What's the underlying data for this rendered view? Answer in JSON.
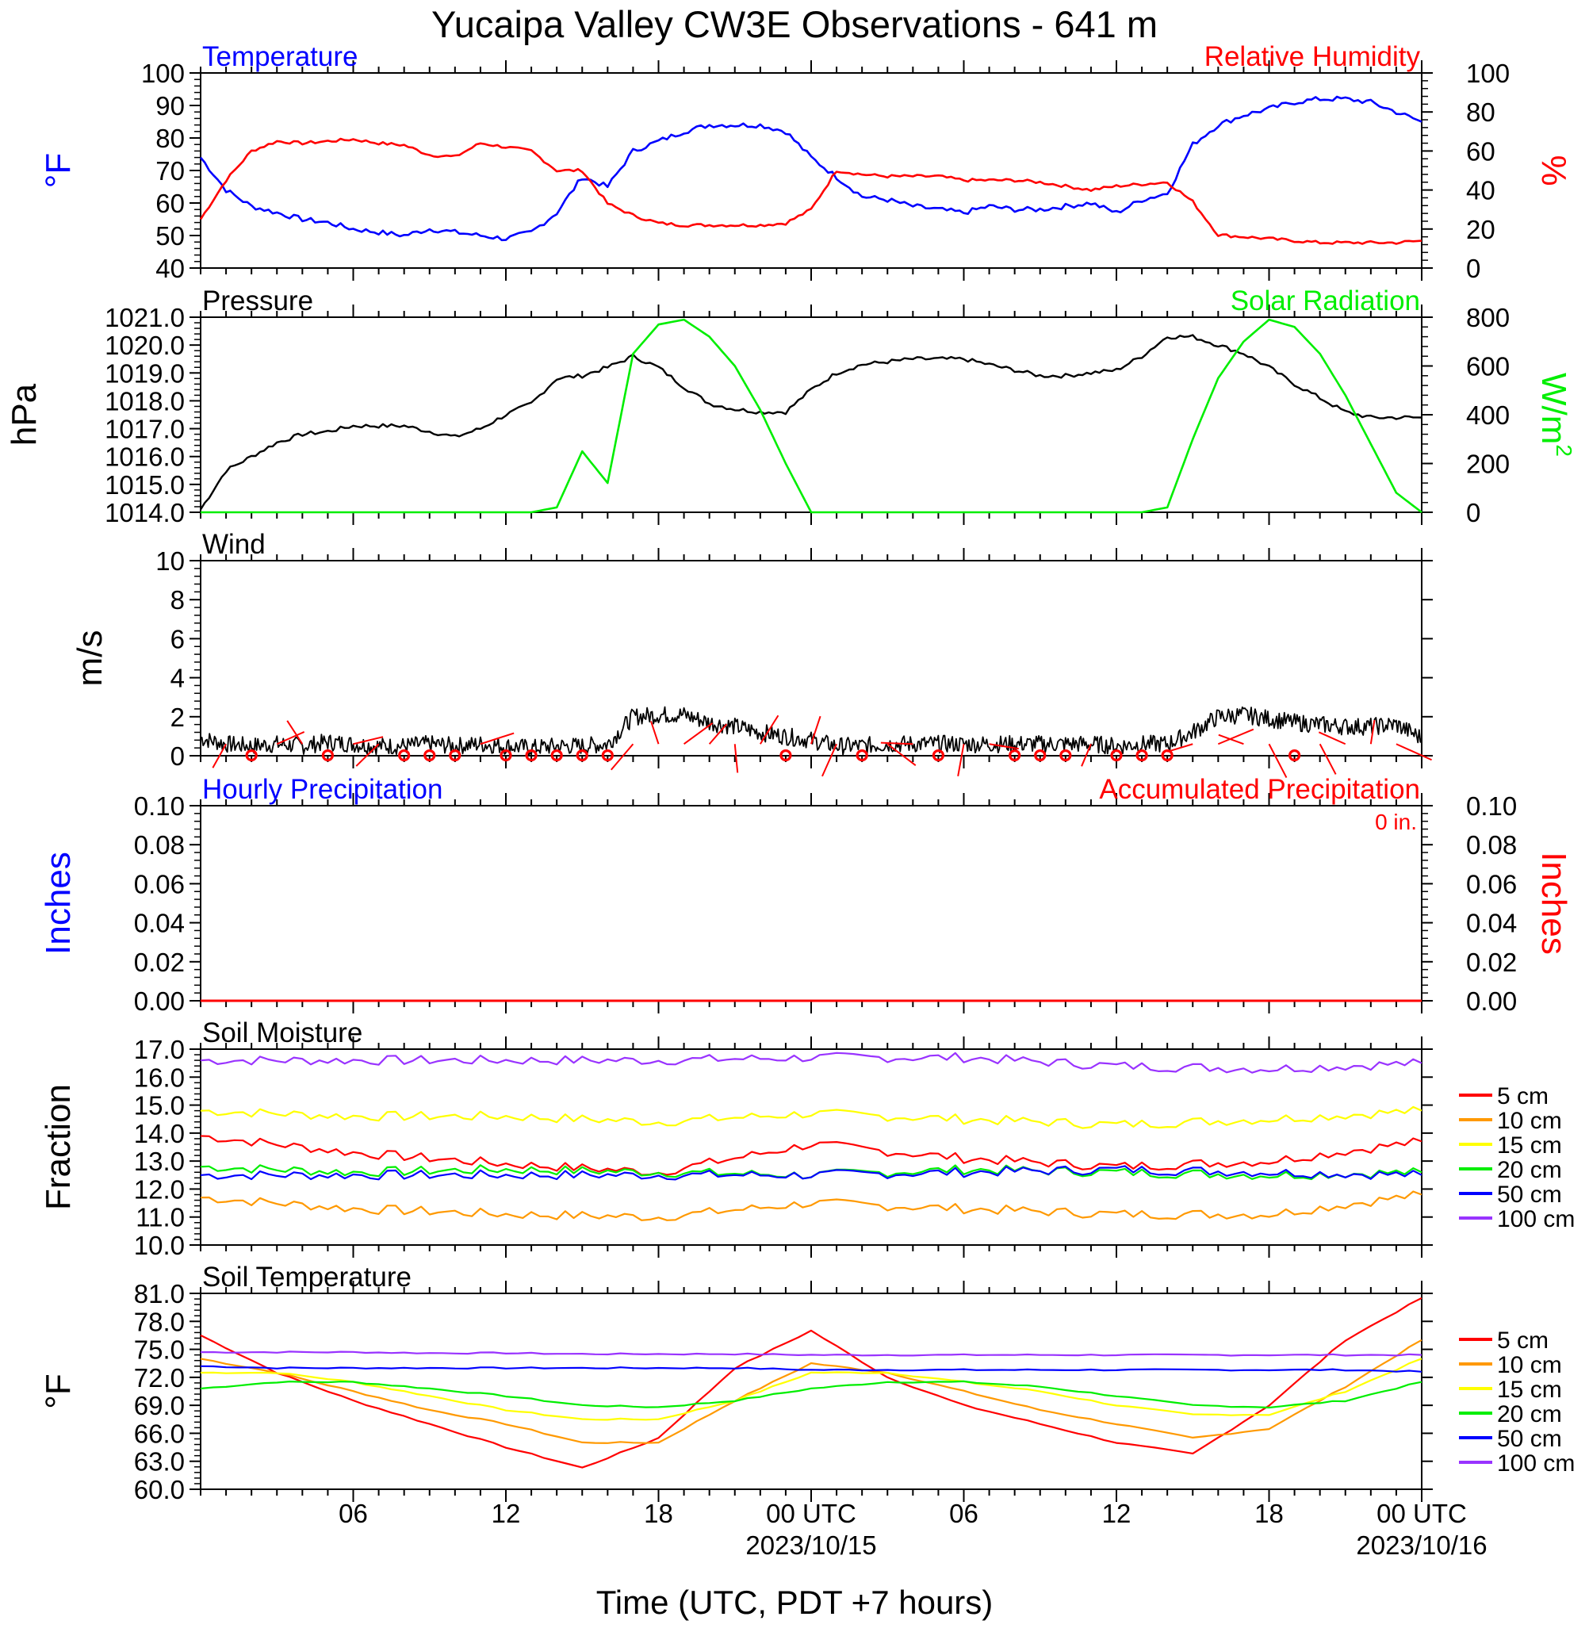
{
  "page": {
    "title": "Yucaipa Valley CW3E Observations - 641 m",
    "x_axis_label": "Time (UTC, PDT +7 hours)",
    "x_ticks": [
      "06",
      "12",
      "18",
      "00 UTC",
      "06",
      "12",
      "18",
      "00 UTC"
    ],
    "x_dates": [
      "2023/10/15",
      "2023/10/16"
    ],
    "colors": {
      "blue": "#0000ff",
      "red": "#ff0000",
      "green": "#00ee00",
      "black": "#000000"
    }
  },
  "chart_data": [
    {
      "id": "temp_rh",
      "type": "line",
      "title_left": "Temperature",
      "title_right": "Relative Humidity",
      "ylabel_left": "°F",
      "ylabel_right": "%",
      "ylim_left": [
        40,
        100
      ],
      "ylim_right": [
        0,
        100
      ],
      "yticks_left": [
        "100",
        "90",
        "80",
        "70",
        "60",
        "50",
        "40"
      ],
      "yticks_right": [
        "100",
        "80",
        "60",
        "40",
        "20",
        "0"
      ],
      "x_hours": [
        1,
        2,
        3,
        4,
        5,
        6,
        7,
        8,
        9,
        10,
        11,
        12,
        13,
        14,
        15,
        16,
        17,
        18,
        19,
        20,
        21,
        22,
        23,
        24,
        25,
        26,
        27,
        28,
        29,
        30,
        31,
        32,
        33,
        34,
        35,
        36,
        37,
        38,
        39,
        40,
        41,
        42,
        43,
        44,
        45,
        46,
        47,
        48,
        49
      ],
      "series": [
        {
          "name": "Temperature",
          "axis": "left",
          "color": "#0000ff",
          "values": [
            74,
            64,
            59,
            57,
            55,
            54,
            52,
            51,
            50,
            52,
            51,
            50,
            49,
            51,
            57,
            68,
            65,
            76,
            79,
            82,
            84,
            84,
            84,
            82,
            74,
            68,
            62,
            61,
            59,
            58,
            57,
            59,
            58,
            58,
            59,
            60,
            57,
            61,
            63,
            78,
            84,
            87,
            89,
            91,
            92,
            92,
            91,
            88,
            85
          ]
        },
        {
          "name": "Relative Humidity",
          "axis": "right",
          "color": "#ff0000",
          "values": [
            25,
            45,
            60,
            65,
            64,
            65,
            66,
            64,
            63,
            58,
            57,
            64,
            62,
            60,
            50,
            50,
            33,
            27,
            23,
            22,
            22,
            22,
            22,
            23,
            30,
            50,
            48,
            47,
            47,
            47,
            45,
            45,
            45,
            44,
            42,
            40,
            42,
            43,
            44,
            34,
            17,
            16,
            15,
            14,
            13,
            13,
            13,
            13,
            14
          ]
        }
      ]
    },
    {
      "id": "pressure_solar",
      "type": "line",
      "title_left": "Pressure",
      "title_right": "Solar Radiation",
      "ylabel_left": "hPa",
      "ylabel_right": "W/m",
      "ylabel_right_sup": "2",
      "ylim_left": [
        1014,
        1021
      ],
      "ylim_right": [
        0,
        800
      ],
      "yticks_left": [
        "1021.0",
        "1020.0",
        "1019.0",
        "1018.0",
        "1017.0",
        "1016.0",
        "1015.0",
        "1014.0"
      ],
      "yticks_right": [
        "800",
        "600",
        "400",
        "200",
        "0"
      ],
      "x_hours": [
        1,
        2,
        3,
        4,
        5,
        6,
        7,
        8,
        9,
        10,
        11,
        12,
        13,
        14,
        15,
        16,
        17,
        18,
        19,
        20,
        21,
        22,
        23,
        24,
        25,
        26,
        27,
        28,
        29,
        30,
        31,
        32,
        33,
        34,
        35,
        36,
        37,
        38,
        39,
        40,
        41,
        42,
        43,
        44,
        45,
        46,
        47,
        48,
        49
      ],
      "series": [
        {
          "name": "Pressure",
          "axis": "left",
          "color": "#000000",
          "values": [
            1014.1,
            1015.5,
            1016.0,
            1016.5,
            1016.8,
            1016.9,
            1017.1,
            1017.1,
            1017.1,
            1016.9,
            1016.7,
            1017.0,
            1017.5,
            1017.9,
            1018.8,
            1018.9,
            1019.2,
            1019.6,
            1019.2,
            1018.5,
            1017.9,
            1017.7,
            1017.6,
            1017.6,
            1018.4,
            1019.0,
            1019.3,
            1019.4,
            1019.5,
            1019.5,
            1019.5,
            1019.3,
            1019.1,
            1018.9,
            1018.9,
            1019.0,
            1019.1,
            1019.6,
            1020.3,
            1020.3,
            1020.0,
            1019.7,
            1019.2,
            1018.6,
            1018.1,
            1017.6,
            1017.4,
            1017.4,
            1017.4
          ]
        },
        {
          "name": "Solar Radiation",
          "axis": "right",
          "color": "#00ee00",
          "values": [
            0,
            0,
            0,
            0,
            0,
            0,
            0,
            0,
            0,
            0,
            0,
            0,
            0,
            0,
            20,
            250,
            120,
            650,
            770,
            790,
            720,
            600,
            420,
            200,
            0,
            0,
            0,
            0,
            0,
            0,
            0,
            0,
            0,
            0,
            0,
            0,
            0,
            0,
            20,
            300,
            550,
            700,
            790,
            760,
            650,
            480,
            280,
            80,
            0
          ]
        }
      ]
    },
    {
      "id": "wind",
      "type": "line",
      "title_left": "Wind",
      "ylabel_left": "m/s",
      "ylim_left": [
        0,
        10
      ],
      "yticks_left": [
        "10",
        "8",
        "6",
        "4",
        "2",
        "0"
      ],
      "x_hours": [
        1,
        2,
        3,
        4,
        5,
        6,
        7,
        8,
        9,
        10,
        11,
        12,
        13,
        14,
        15,
        16,
        17,
        18,
        19,
        20,
        21,
        22,
        23,
        24,
        25,
        26,
        27,
        28,
        29,
        30,
        31,
        32,
        33,
        34,
        35,
        36,
        37,
        38,
        39,
        40,
        41,
        42,
        43,
        44,
        45,
        46,
        47,
        48,
        49
      ],
      "series": [
        {
          "name": "Wind",
          "color": "#000000",
          "values": [
            0.9,
            0.6,
            0.5,
            0.6,
            0.5,
            0.7,
            0.6,
            0.5,
            0.5,
            0.6,
            0.5,
            0.6,
            0.5,
            0.4,
            0.5,
            0.5,
            0.6,
            2.0,
            2.1,
            2.1,
            1.7,
            1.5,
            1.2,
            1.0,
            0.8,
            0.5,
            0.5,
            0.6,
            0.6,
            0.6,
            0.6,
            0.6,
            0.6,
            0.6,
            0.6,
            0.6,
            0.5,
            0.6,
            0.6,
            1.2,
            2.0,
            2.1,
            1.9,
            1.7,
            1.6,
            1.5,
            1.5,
            1.6,
            0.9
          ]
        }
      ],
      "calm_circle_hours": [
        3,
        6,
        9,
        10,
        11,
        13,
        14,
        15,
        16,
        17,
        24,
        27,
        30,
        33,
        34,
        35,
        37,
        38,
        39,
        44
      ]
    },
    {
      "id": "precip",
      "type": "line",
      "title_left": "Hourly Precipitation",
      "title_right": "Accumulated Precipitation",
      "annotation": "0 in.",
      "ylabel_left": "Inches",
      "ylabel_right": "Inches",
      "ylim_left": [
        0,
        0.1
      ],
      "ylim_right": [
        0,
        0.1
      ],
      "yticks_left": [
        "0.10",
        "0.08",
        "0.06",
        "0.04",
        "0.02",
        "0.00"
      ],
      "yticks_right": [
        "0.10",
        "0.08",
        "0.06",
        "0.04",
        "0.02",
        "0.00"
      ],
      "x_hours": [
        1,
        49
      ],
      "series": [
        {
          "name": "Hourly Precipitation",
          "axis": "left",
          "color": "#0000ff",
          "values": [
            0,
            0
          ]
        },
        {
          "name": "Accumulated Precipitation",
          "axis": "right",
          "color": "#ff0000",
          "values": [
            0,
            0
          ]
        }
      ]
    },
    {
      "id": "soil_moisture",
      "type": "line",
      "title_left": "Soil Moisture",
      "ylabel_left": "Fraction",
      "ylim_left": [
        10,
        17
      ],
      "yticks_left": [
        "17.0",
        "16.0",
        "15.0",
        "14.0",
        "13.0",
        "12.0",
        "11.0",
        "10.0"
      ],
      "x_hours": [
        1,
        7,
        13,
        19,
        25,
        31,
        37,
        43,
        49
      ],
      "series": [
        {
          "name": "5 cm",
          "color": "#ff0000",
          "values": [
            13.9,
            13.3,
            12.9,
            12.6,
            13.6,
            13.1,
            12.8,
            13.0,
            13.7
          ]
        },
        {
          "name": "10 cm",
          "color": "#ff9900",
          "values": [
            11.7,
            11.3,
            11.1,
            11.0,
            11.5,
            11.3,
            11.1,
            11.1,
            11.8
          ]
        },
        {
          "name": "15 cm",
          "color": "#ffff00",
          "values": [
            14.8,
            14.6,
            14.6,
            14.4,
            14.7,
            14.5,
            14.3,
            14.5,
            14.8
          ]
        },
        {
          "name": "20 cm",
          "color": "#00ee00",
          "values": [
            12.8,
            12.6,
            12.7,
            12.6,
            12.5,
            12.7,
            12.6,
            12.5,
            12.6
          ]
        },
        {
          "name": "50 cm",
          "color": "#0000ff",
          "values": [
            12.5,
            12.5,
            12.5,
            12.5,
            12.5,
            12.6,
            12.7,
            12.6,
            12.5
          ]
        },
        {
          "name": "100 cm",
          "color": "#9933ff",
          "values": [
            16.6,
            16.6,
            16.6,
            16.6,
            16.7,
            16.7,
            16.4,
            16.3,
            16.5
          ]
        }
      ]
    },
    {
      "id": "soil_temp",
      "type": "line",
      "title_left": "Soil Temperature",
      "ylabel_left": "°F",
      "ylim_left": [
        60,
        81
      ],
      "yticks_left": [
        "81.0",
        "78.0",
        "75.0",
        "72.0",
        "69.0",
        "66.0",
        "63.0",
        "60.0"
      ],
      "x_hours": [
        1,
        4,
        7,
        10,
        13,
        16,
        19,
        22,
        25,
        28,
        31,
        34,
        37,
        40,
        43,
        46,
        49
      ],
      "series": [
        {
          "name": "5 cm",
          "color": "#ff0000",
          "values": [
            76.5,
            72.5,
            69.5,
            67.0,
            64.5,
            62.3,
            65.5,
            73.0,
            77.0,
            72.0,
            69.0,
            67.0,
            65.0,
            63.8,
            69.0,
            76.0,
            80.5
          ]
        },
        {
          "name": "10 cm",
          "color": "#ff9900",
          "values": [
            74.0,
            72.5,
            70.5,
            68.5,
            67.0,
            65.0,
            65.0,
            69.5,
            73.5,
            72.5,
            70.5,
            68.5,
            67.0,
            65.5,
            66.5,
            71.0,
            76.0
          ]
        },
        {
          "name": "15 cm",
          "color": "#ffff00",
          "values": [
            72.5,
            72.5,
            71.5,
            70.0,
            68.5,
            67.5,
            67.5,
            69.5,
            72.5,
            72.5,
            71.5,
            70.5,
            69.0,
            68.0,
            68.0,
            70.5,
            74.0
          ]
        },
        {
          "name": "20 cm",
          "color": "#00ee00",
          "values": [
            70.8,
            71.5,
            71.5,
            70.8,
            70.0,
            69.0,
            68.8,
            69.5,
            70.8,
            71.5,
            71.5,
            71.0,
            70.0,
            69.0,
            68.8,
            69.5,
            71.5
          ]
        },
        {
          "name": "50 cm",
          "color": "#0000ff",
          "values": [
            73.2,
            73.0,
            73.0,
            73.0,
            73.0,
            73.0,
            73.0,
            73.0,
            72.8,
            72.8,
            72.8,
            72.8,
            72.8,
            72.8,
            72.8,
            72.8,
            72.6
          ]
        },
        {
          "name": "100 cm",
          "color": "#9933ff",
          "values": [
            74.7,
            74.7,
            74.7,
            74.6,
            74.6,
            74.5,
            74.5,
            74.5,
            74.4,
            74.4,
            74.4,
            74.4,
            74.4,
            74.4,
            74.4,
            74.4,
            74.4
          ]
        }
      ]
    }
  ]
}
